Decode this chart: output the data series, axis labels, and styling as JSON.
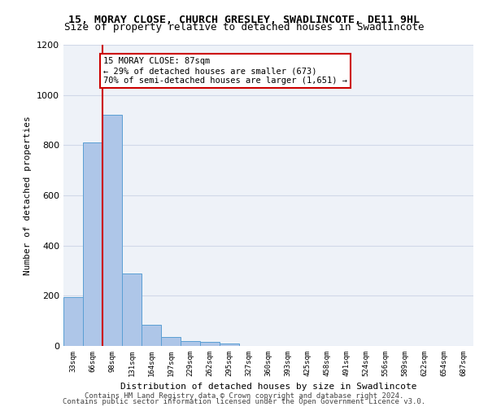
{
  "title_line1": "15, MORAY CLOSE, CHURCH GRESLEY, SWADLINCOTE, DE11 9HL",
  "title_line2": "Size of property relative to detached houses in Swadlincote",
  "xlabel": "Distribution of detached houses by size in Swadlincote",
  "ylabel": "Number of detached properties",
  "bin_labels": [
    "33sqm",
    "66sqm",
    "98sqm",
    "131sqm",
    "164sqm",
    "197sqm",
    "229sqm",
    "262sqm",
    "295sqm",
    "327sqm",
    "360sqm",
    "393sqm",
    "425sqm",
    "458sqm",
    "491sqm",
    "524sqm",
    "556sqm",
    "589sqm",
    "622sqm",
    "654sqm",
    "687sqm"
  ],
  "bar_values": [
    193,
    810,
    920,
    290,
    85,
    35,
    18,
    15,
    10,
    0,
    0,
    0,
    0,
    0,
    0,
    0,
    0,
    0,
    0,
    0,
    0
  ],
  "bar_color": "#aec6e8",
  "bar_edge_color": "#5a9fd4",
  "property_size": 87,
  "property_bin_index": 2,
  "vline_x": 1.5,
  "annotation_title": "15 MORAY CLOSE: 87sqm",
  "annotation_line1": "← 29% of detached houses are smaller (673)",
  "annotation_line2": "70% of semi-detached houses are larger (1,651) →",
  "annotation_box_color": "#ffffff",
  "annotation_box_edge": "#cc0000",
  "vline_color": "#cc0000",
  "ylim": [
    0,
    1200
  ],
  "yticks": [
    0,
    200,
    400,
    600,
    800,
    1000,
    1200
  ],
  "footer_line1": "Contains HM Land Registry data © Crown copyright and database right 2024.",
  "footer_line2": "Contains public sector information licensed under the Open Government Licence v3.0.",
  "grid_color": "#d0d8e8",
  "background_color": "#eef2f8"
}
